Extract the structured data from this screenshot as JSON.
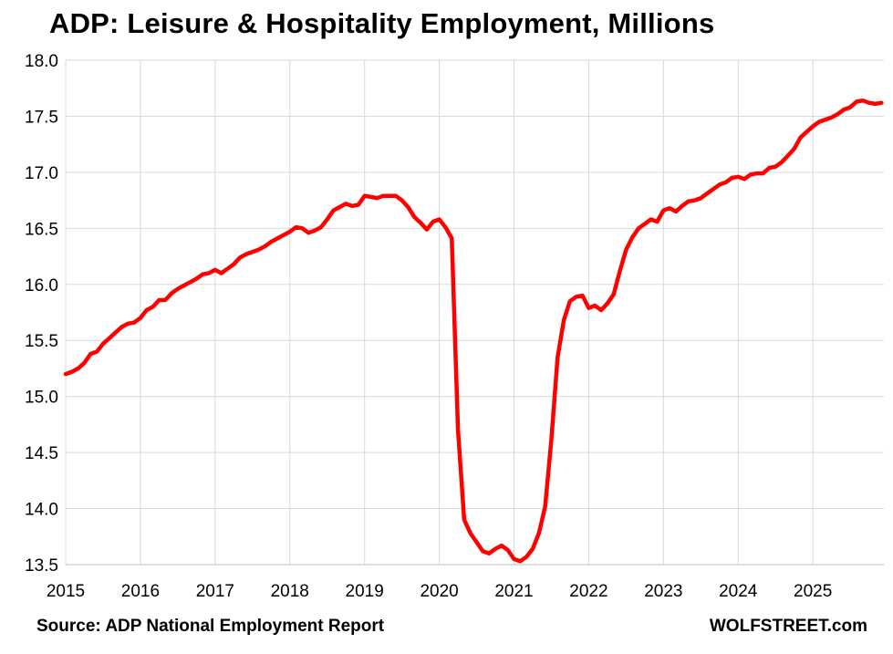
{
  "chart_data": {
    "type": "line",
    "title": "ADP: Leisure & Hospitality Employment, Millions",
    "source": "Source: ADP National Employment Report",
    "brand": "WOLFSTREET.com",
    "xlabel": "",
    "ylabel": "",
    "xlim": [
      2015,
      2025.95
    ],
    "ylim": [
      13.5,
      18.0
    ],
    "x_ticks": [
      "2015",
      "2016",
      "2017",
      "2018",
      "2019",
      "2020",
      "2021",
      "2022",
      "2023",
      "2024",
      "2025"
    ],
    "y_ticks": [
      "13.5",
      "14.0",
      "14.5",
      "15.0",
      "15.5",
      "16.0",
      "16.5",
      "17.0",
      "17.5",
      "18.0"
    ],
    "grid": "vertical-and-horizontal",
    "legend": "none",
    "series_color": "#ff0000",
    "series": [
      {
        "points": [
          [
            2015.0,
            15.2
          ],
          [
            2015.083,
            15.22
          ],
          [
            2015.167,
            15.25
          ],
          [
            2015.25,
            15.3
          ],
          [
            2015.333,
            15.38
          ],
          [
            2015.417,
            15.4
          ],
          [
            2015.5,
            15.47
          ],
          [
            2015.583,
            15.52
          ],
          [
            2015.667,
            15.57
          ],
          [
            2015.75,
            15.62
          ],
          [
            2015.833,
            15.65
          ],
          [
            2015.917,
            15.66
          ],
          [
            2016.0,
            15.7
          ],
          [
            2016.083,
            15.77
          ],
          [
            2016.167,
            15.8
          ],
          [
            2016.25,
            15.86
          ],
          [
            2016.333,
            15.86
          ],
          [
            2016.417,
            15.92
          ],
          [
            2016.5,
            15.96
          ],
          [
            2016.583,
            15.99
          ],
          [
            2016.667,
            16.02
          ],
          [
            2016.75,
            16.05
          ],
          [
            2016.833,
            16.09
          ],
          [
            2016.917,
            16.1
          ],
          [
            2017.0,
            16.13
          ],
          [
            2017.083,
            16.1
          ],
          [
            2017.167,
            16.14
          ],
          [
            2017.25,
            16.18
          ],
          [
            2017.333,
            16.24
          ],
          [
            2017.417,
            16.27
          ],
          [
            2017.5,
            16.29
          ],
          [
            2017.583,
            16.31
          ],
          [
            2017.667,
            16.34
          ],
          [
            2017.75,
            16.38
          ],
          [
            2017.833,
            16.41
          ],
          [
            2017.917,
            16.44
          ],
          [
            2018.0,
            16.47
          ],
          [
            2018.083,
            16.51
          ],
          [
            2018.167,
            16.5
          ],
          [
            2018.25,
            16.46
          ],
          [
            2018.333,
            16.48
          ],
          [
            2018.417,
            16.51
          ],
          [
            2018.5,
            16.58
          ],
          [
            2018.583,
            16.66
          ],
          [
            2018.667,
            16.69
          ],
          [
            2018.75,
            16.72
          ],
          [
            2018.833,
            16.7
          ],
          [
            2018.917,
            16.71
          ],
          [
            2019.0,
            16.79
          ],
          [
            2019.083,
            16.78
          ],
          [
            2019.167,
            16.77
          ],
          [
            2019.25,
            16.79
          ],
          [
            2019.333,
            16.79
          ],
          [
            2019.417,
            16.79
          ],
          [
            2019.5,
            16.75
          ],
          [
            2019.583,
            16.69
          ],
          [
            2019.667,
            16.6
          ],
          [
            2019.75,
            16.55
          ],
          [
            2019.833,
            16.49
          ],
          [
            2019.917,
            16.56
          ],
          [
            2020.0,
            16.58
          ],
          [
            2020.083,
            16.51
          ],
          [
            2020.167,
            16.41
          ],
          [
            2020.25,
            14.7
          ],
          [
            2020.333,
            13.9
          ],
          [
            2020.417,
            13.78
          ],
          [
            2020.5,
            13.7
          ],
          [
            2020.583,
            13.62
          ],
          [
            2020.667,
            13.6
          ],
          [
            2020.75,
            13.64
          ],
          [
            2020.833,
            13.67
          ],
          [
            2020.917,
            13.63
          ],
          [
            2021.0,
            13.55
          ],
          [
            2021.083,
            13.53
          ],
          [
            2021.167,
            13.57
          ],
          [
            2021.25,
            13.64
          ],
          [
            2021.333,
            13.78
          ],
          [
            2021.417,
            14.02
          ],
          [
            2021.5,
            14.62
          ],
          [
            2021.583,
            15.35
          ],
          [
            2021.667,
            15.68
          ],
          [
            2021.75,
            15.85
          ],
          [
            2021.833,
            15.89
          ],
          [
            2021.917,
            15.9
          ],
          [
            2022.0,
            15.79
          ],
          [
            2022.083,
            15.81
          ],
          [
            2022.167,
            15.77
          ],
          [
            2022.25,
            15.83
          ],
          [
            2022.333,
            15.91
          ],
          [
            2022.417,
            16.12
          ],
          [
            2022.5,
            16.31
          ],
          [
            2022.583,
            16.42
          ],
          [
            2022.667,
            16.5
          ],
          [
            2022.75,
            16.54
          ],
          [
            2022.833,
            16.58
          ],
          [
            2022.917,
            16.56
          ],
          [
            2023.0,
            16.66
          ],
          [
            2023.083,
            16.68
          ],
          [
            2023.167,
            16.65
          ],
          [
            2023.25,
            16.7
          ],
          [
            2023.333,
            16.74
          ],
          [
            2023.417,
            16.75
          ],
          [
            2023.5,
            16.77
          ],
          [
            2023.583,
            16.81
          ],
          [
            2023.667,
            16.85
          ],
          [
            2023.75,
            16.89
          ],
          [
            2023.833,
            16.91
          ],
          [
            2023.917,
            16.95
          ],
          [
            2024.0,
            16.96
          ],
          [
            2024.083,
            16.94
          ],
          [
            2024.167,
            16.98
          ],
          [
            2024.25,
            16.99
          ],
          [
            2024.333,
            16.99
          ],
          [
            2024.417,
            17.04
          ],
          [
            2024.5,
            17.05
          ],
          [
            2024.583,
            17.09
          ],
          [
            2024.667,
            17.15
          ],
          [
            2024.75,
            17.21
          ],
          [
            2024.833,
            17.31
          ],
          [
            2024.917,
            17.36
          ],
          [
            2025.0,
            17.41
          ],
          [
            2025.083,
            17.45
          ],
          [
            2025.167,
            17.47
          ],
          [
            2025.25,
            17.49
          ],
          [
            2025.333,
            17.52
          ],
          [
            2025.417,
            17.56
          ],
          [
            2025.5,
            17.58
          ],
          [
            2025.583,
            17.63
          ],
          [
            2025.667,
            17.64
          ],
          [
            2025.75,
            17.62
          ],
          [
            2025.833,
            17.61
          ],
          [
            2025.917,
            17.62
          ]
        ]
      }
    ]
  }
}
